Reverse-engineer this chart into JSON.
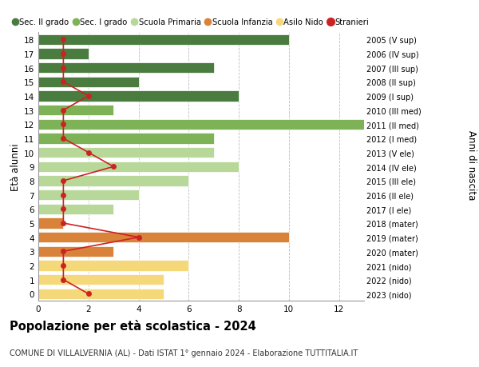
{
  "ages": [
    18,
    17,
    16,
    15,
    14,
    13,
    12,
    11,
    10,
    9,
    8,
    7,
    6,
    5,
    4,
    3,
    2,
    1,
    0
  ],
  "right_labels": [
    "2005 (V sup)",
    "2006 (IV sup)",
    "2007 (III sup)",
    "2008 (II sup)",
    "2009 (I sup)",
    "2010 (III med)",
    "2011 (II med)",
    "2012 (I med)",
    "2013 (V ele)",
    "2014 (IV ele)",
    "2015 (III ele)",
    "2016 (II ele)",
    "2017 (I ele)",
    "2018 (mater)",
    "2019 (mater)",
    "2020 (mater)",
    "2021 (nido)",
    "2022 (nido)",
    "2023 (nido)"
  ],
  "bar_values": [
    10,
    2,
    7,
    4,
    8,
    3,
    13,
    7,
    7,
    8,
    6,
    4,
    3,
    1,
    10,
    3,
    6,
    5,
    5
  ],
  "bar_colors": [
    "#4a7c3f",
    "#4a7c3f",
    "#4a7c3f",
    "#4a7c3f",
    "#4a7c3f",
    "#7db356",
    "#7db356",
    "#7db356",
    "#b8d89a",
    "#b8d89a",
    "#b8d89a",
    "#b8d89a",
    "#b8d89a",
    "#d9823a",
    "#d9823a",
    "#d9823a",
    "#f5d87a",
    "#f5d87a",
    "#f5d87a"
  ],
  "stranieri_values": [
    1,
    1,
    1,
    1,
    2,
    1,
    1,
    1,
    2,
    3,
    1,
    1,
    1,
    1,
    4,
    1,
    1,
    1,
    2
  ],
  "stranieri_color": "#cc2222",
  "legend_labels": [
    "Sec. II grado",
    "Sec. I grado",
    "Scuola Primaria",
    "Scuola Infanzia",
    "Asilo Nido",
    "Stranieri"
  ],
  "legend_colors": [
    "#4a7c3f",
    "#7db356",
    "#b8d89a",
    "#d9823a",
    "#f5d87a",
    "#cc2222"
  ],
  "title": "Popolazione per età scolastica - 2024",
  "subtitle": "COMUNE DI VILLALVERNIA (AL) - Dati ISTAT 1° gennaio 2024 - Elaborazione TUTTITALIA.IT",
  "ylabel": "Età alunni",
  "ylabel2": "Anni di nascita",
  "xlim": [
    0,
    13
  ],
  "xticks": [
    0,
    2,
    4,
    6,
    8,
    10,
    12
  ],
  "bg_color": "#ffffff",
  "grid_color": "#bbbbbb"
}
